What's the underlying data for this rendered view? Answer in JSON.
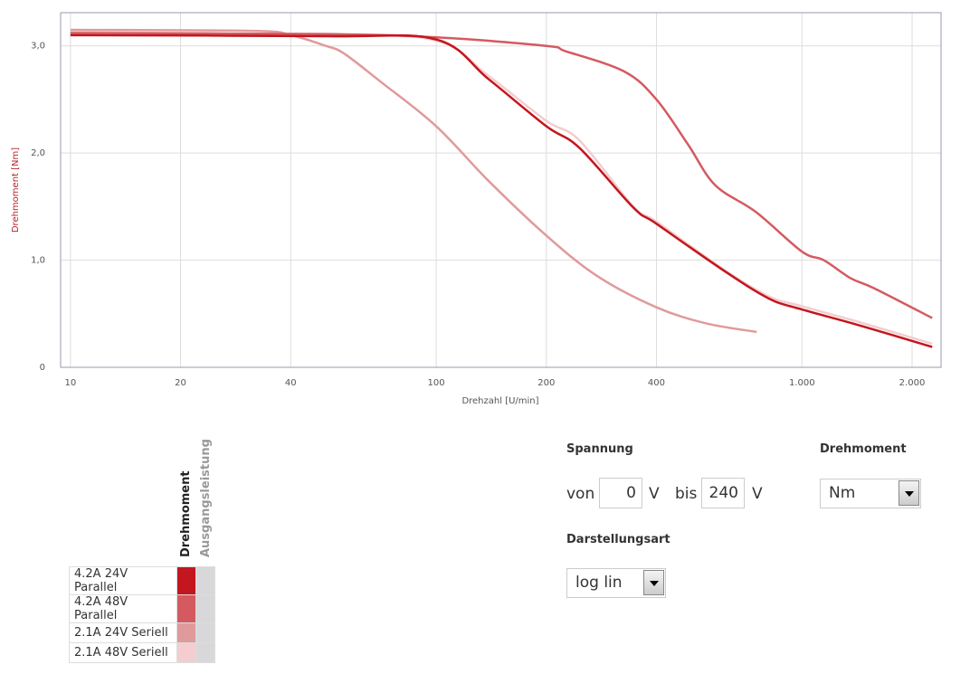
{
  "chart_data": {
    "type": "line",
    "x_label": "Drehzahl [U/min]",
    "y_label": "Drehmoment [Nm]",
    "x_scale": "log",
    "grid": true,
    "xlim": [
      9.4,
      2400
    ],
    "ylim": [
      0,
      3.31
    ],
    "xticks": [
      10,
      20,
      40,
      100,
      200,
      400,
      {
        "value": 1000,
        "label": "1.000"
      },
      {
        "value": 2000,
        "label": "2.000"
      }
    ],
    "yticks": [
      0,
      {
        "value": 1,
        "label": "1,0"
      },
      {
        "value": 2,
        "label": "2,0"
      },
      {
        "value": 3,
        "label": "3,0"
      }
    ],
    "series": [
      {
        "name": "4.2A 24V Parallel",
        "color": "#c3161e",
        "x": [
          10,
          50,
          100,
          139,
          200,
          246,
          346,
          400,
          613,
          814,
          1000,
          1440,
          2270
        ],
        "values": [
          3.1,
          3.09,
          3.06,
          2.69,
          2.25,
          2.05,
          1.49,
          1.34,
          0.9,
          0.64,
          0.54,
          0.39,
          0.19
        ]
      },
      {
        "name": "4.2A 48V Parallel",
        "color": "#d45a60",
        "x": [
          10,
          50,
          100,
          200,
          226,
          327,
          400,
          488,
          579,
          748,
          1000,
          1147,
          1361,
          1570,
          2270
        ],
        "values": [
          3.12,
          3.11,
          3.08,
          3.0,
          2.95,
          2.76,
          2.5,
          2.08,
          1.7,
          1.45,
          1.08,
          1.0,
          0.83,
          0.74,
          0.46
        ]
      },
      {
        "name": "2.1A 24V Seriell",
        "color": "#e09a9b",
        "x": [
          10,
          31.6,
          40,
          49.9,
          55.9,
          70.2,
          100,
          139,
          200,
          276,
          400,
          547,
          752
        ],
        "values": [
          3.15,
          3.14,
          3.1,
          3.0,
          2.93,
          2.67,
          2.25,
          1.74,
          1.23,
          0.85,
          0.56,
          0.41,
          0.33
        ]
      },
      {
        "name": "2.1A 48V Seriell",
        "color": "#f3cdcf",
        "x": [
          10,
          50,
          100,
          139,
          200,
          246,
          346,
          400,
          613,
          814,
          1000,
          1440,
          2270
        ],
        "values": [
          3.13,
          3.1,
          3.05,
          2.72,
          2.3,
          2.12,
          1.5,
          1.36,
          0.91,
          0.66,
          0.57,
          0.42,
          0.22
        ]
      }
    ]
  },
  "legend_columns": [
    "Drehmoment",
    "Ausgangsleistung"
  ],
  "controls": {
    "spannung": {
      "label": "Spannung",
      "von": "von",
      "von_value": 0,
      "unit": "V",
      "bis": "bis",
      "bis_value": 240
    },
    "drehmoment": {
      "label": "Drehmoment",
      "selected": "Nm"
    },
    "darstellungsart": {
      "label": "Darstellungsart",
      "selected": "log lin"
    }
  }
}
